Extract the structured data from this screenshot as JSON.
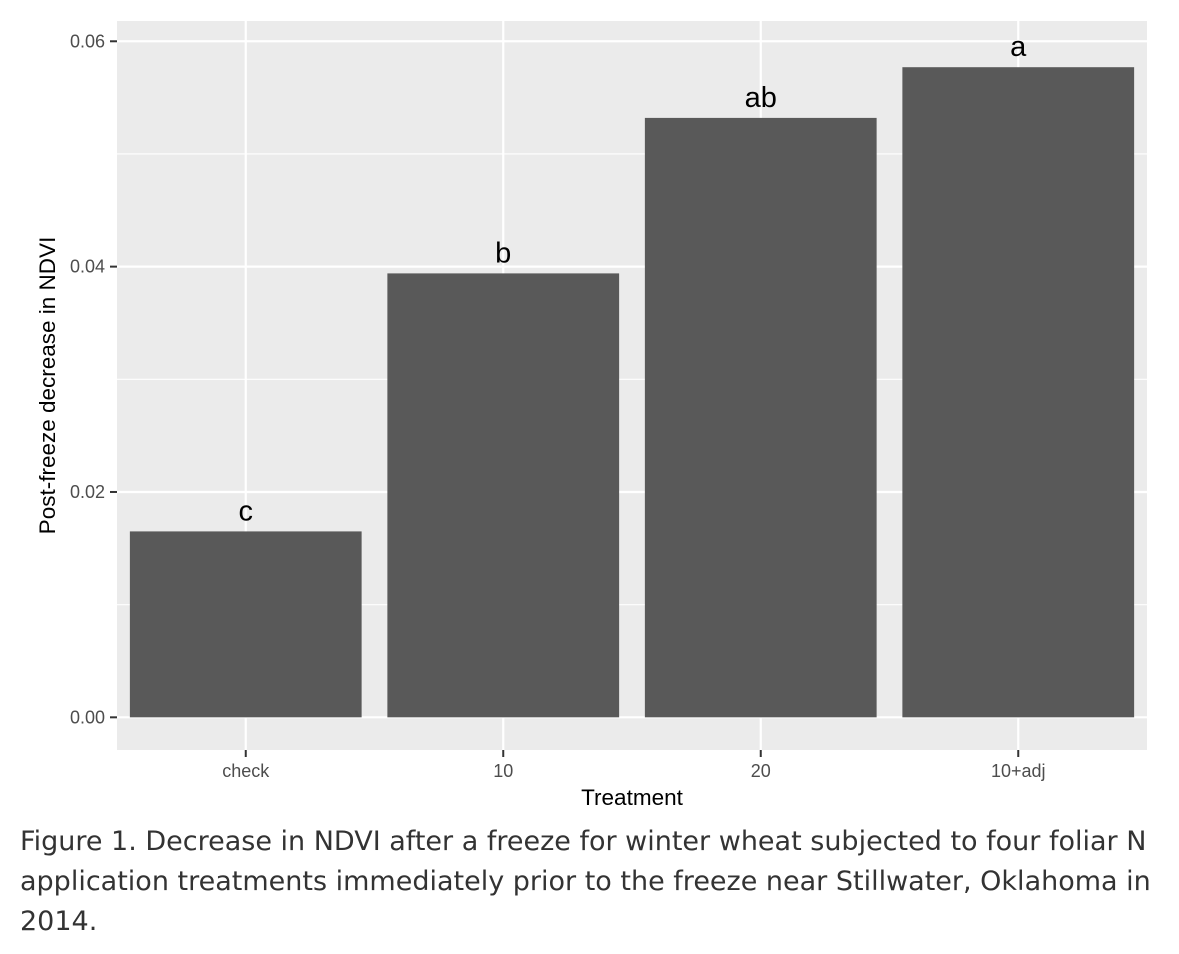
{
  "chart_data": {
    "type": "bar",
    "categories": [
      "check",
      "10",
      "20",
      "10+adj"
    ],
    "values": [
      0.0165,
      0.0394,
      0.0532,
      0.0577
    ],
    "data_labels": [
      "c",
      "b",
      "ab",
      "a"
    ],
    "xlabel": "Treatment",
    "ylabel": "Post-freeze decrease in NDVI",
    "yticks": [
      0,
      0.02,
      0.04,
      0.06
    ],
    "ytick_labels": [
      "0.00",
      "0.02",
      "0.04",
      "0.06"
    ],
    "ylim": [
      -0.0029,
      0.0618
    ],
    "grid": true,
    "colors": {
      "panel_background": "#ebebeb",
      "grid_line": "#ffffff",
      "bar_fill": "#595959"
    }
  },
  "caption": "Figure 1. Decrease in NDVI after a freeze for winter wheat subjected to four foliar N application treatments immediately prior to the freeze near Stillwater, Oklahoma in 2014."
}
